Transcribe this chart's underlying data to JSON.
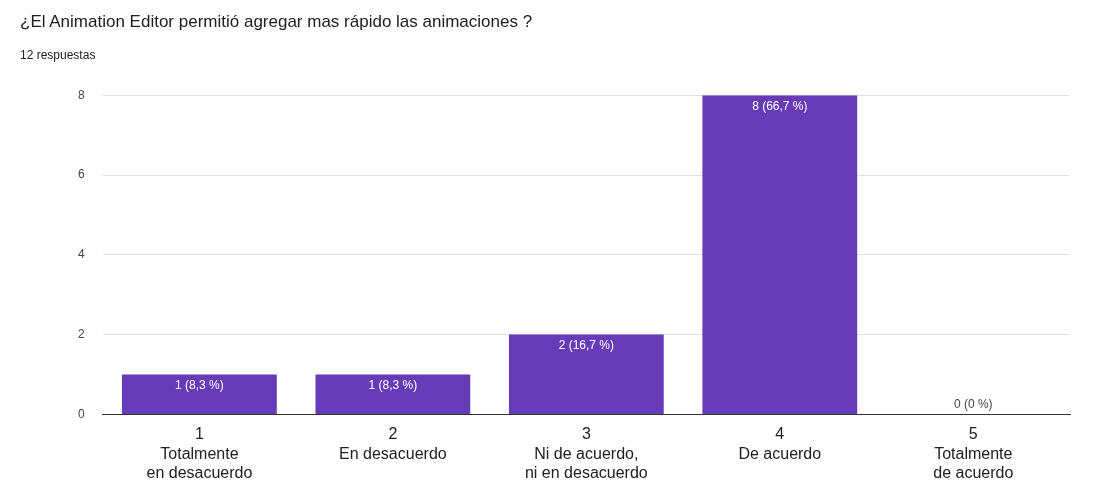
{
  "chart_data": {
    "type": "bar",
    "title": "¿El Animation Editor permitió agregar mas rápido las animaciones ?",
    "subtitle": "12 respuestas",
    "categories": [
      "1\nTotalmente\nen desacuerdo",
      "2\nEn desacuerdo",
      "3\nNi de acuerdo,\nni en desacuerdo",
      "4\nDe acuerdo",
      "5\nTotalmente\nde acuerdo"
    ],
    "values": [
      1,
      1,
      2,
      8,
      0
    ],
    "value_labels": [
      "1 (8,3 %)",
      "1 (8,3 %)",
      "2 (16,7 %)",
      "8 (66,7 %)",
      "0 (0 %)"
    ],
    "color": "#673ab7",
    "ylim": [
      0,
      8
    ],
    "yticks": [
      0,
      2,
      4,
      6,
      8
    ],
    "grid": "y",
    "legend": false
  }
}
